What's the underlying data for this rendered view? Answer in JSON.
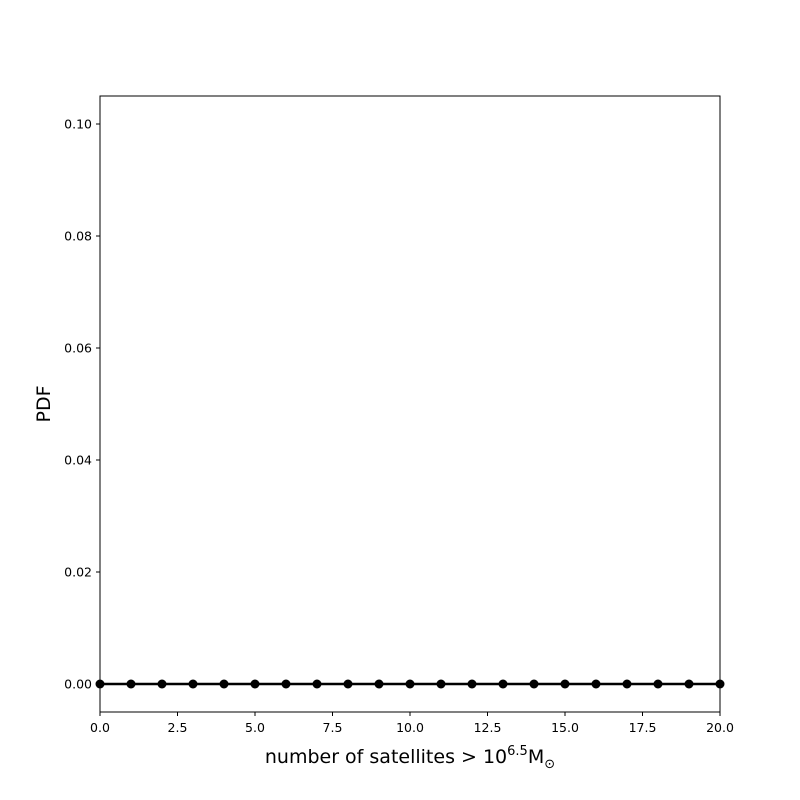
{
  "chart_data": {
    "type": "line",
    "title": "",
    "xlabel_main": "number of satellites > 10",
    "xlabel_exponent": "6.5",
    "xlabel_unit": "M",
    "xlabel_subscript": "⊙",
    "ylabel": "PDF",
    "xlim": [
      0,
      20
    ],
    "ylim": [
      -0.005,
      0.105
    ],
    "xticks": [
      0,
      2.5,
      5,
      7.5,
      10,
      12.5,
      15,
      17.5,
      20
    ],
    "xtick_labels": [
      "0.0",
      "2.5",
      "5.0",
      "7.5",
      "10.0",
      "12.5",
      "15.0",
      "17.5",
      "20.0"
    ],
    "yticks": [
      0,
      0.02,
      0.04,
      0.06,
      0.08,
      0.1
    ],
    "ytick_labels": [
      "0.00",
      "0.02",
      "0.04",
      "0.06",
      "0.08",
      "0.10"
    ],
    "grid": false,
    "series": [
      {
        "color": "#000000",
        "marker": "circle",
        "x": [
          0,
          1,
          2,
          3,
          4,
          5,
          6,
          7,
          8,
          9,
          10,
          11,
          12,
          13,
          14,
          15,
          16,
          17,
          18,
          19,
          20
        ],
        "values": [
          0,
          0,
          0,
          0,
          0,
          0,
          0,
          0,
          0,
          0,
          0,
          0,
          0,
          0,
          0,
          0,
          0,
          0,
          0,
          0,
          0
        ]
      }
    ]
  }
}
